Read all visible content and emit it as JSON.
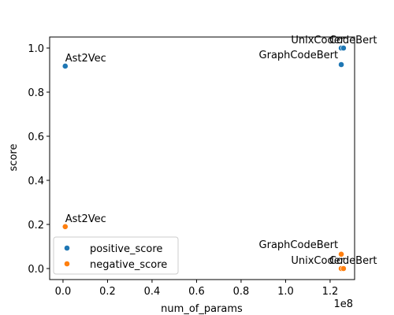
{
  "chart_data": {
    "type": "scatter",
    "xlabel": "num_of_params",
    "ylabel": "score",
    "x_offset_text": "1e8",
    "xlim": [
      -6000000,
      131000000
    ],
    "ylim": [
      -0.05,
      1.05
    ],
    "x_tick_values": [
      0,
      20000000,
      40000000,
      60000000,
      80000000,
      100000000,
      120000000
    ],
    "x_tick_labels": [
      "0.0",
      "0.2",
      "0.4",
      "0.6",
      "0.8",
      "1.0",
      "1.2"
    ],
    "y_tick_values": [
      0.0,
      0.2,
      0.4,
      0.6,
      0.8,
      1.0
    ],
    "y_tick_labels": [
      "0.0",
      "0.2",
      "0.4",
      "0.6",
      "0.8",
      "1.0"
    ],
    "grid": false,
    "legend_position": "lower-left",
    "series": [
      {
        "name": "positive_score",
        "color": "#1f77b4",
        "points": [
          {
            "x": 1000000,
            "y": 0.918
          },
          {
            "x": 125000000,
            "y": 1.0
          },
          {
            "x": 126000000,
            "y": 1.0
          },
          {
            "x": 125000000,
            "y": 0.925
          }
        ]
      },
      {
        "name": "negative_score",
        "color": "#ff7f0e",
        "points": [
          {
            "x": 1000000,
            "y": 0.19
          },
          {
            "x": 125000000,
            "y": 0.065
          },
          {
            "x": 125000000,
            "y": 0.0
          },
          {
            "x": 126000000,
            "y": 0.0
          }
        ]
      }
    ],
    "annotations": [
      {
        "text": "Ast2Vec",
        "x": 1000000,
        "y": 0.918,
        "anchor": "start"
      },
      {
        "text": "UnixCoder",
        "x": 125000000,
        "y": 1.0,
        "anchor": "end"
      },
      {
        "text": "CodeBert",
        "x": 126000000,
        "y": 1.0,
        "anchor": "middle"
      },
      {
        "text": "GraphCodeBert",
        "x": 125000000,
        "y": 0.925,
        "anchor": "end-above"
      },
      {
        "text": "Ast2Vec",
        "x": 1000000,
        "y": 0.19,
        "anchor": "start"
      },
      {
        "text": "GraphCodeBert",
        "x": 125000000,
        "y": 0.065,
        "anchor": "end-above"
      },
      {
        "text": "UnixCoder",
        "x": 125000000,
        "y": 0.0,
        "anchor": "end"
      },
      {
        "text": "CodeBert",
        "x": 126000000,
        "y": 0.0,
        "anchor": "middle"
      }
    ]
  }
}
